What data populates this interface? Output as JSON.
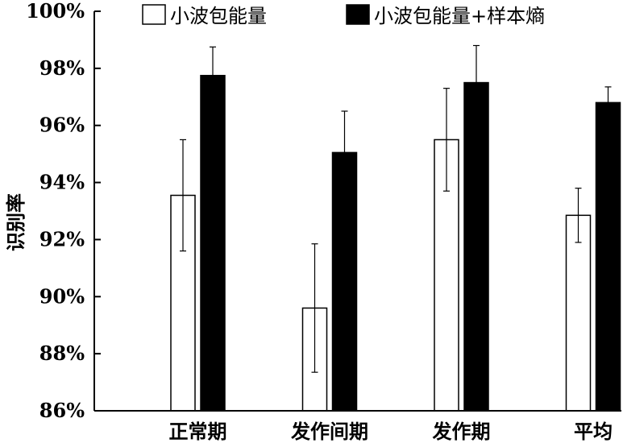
{
  "chart_data": {
    "type": "bar",
    "title": "",
    "xlabel": "",
    "ylabel": "识别率",
    "ylim": [
      86,
      100
    ],
    "yticks": [
      "86%",
      "88%",
      "90%",
      "92%",
      "94%",
      "96%",
      "98%",
      "100%"
    ],
    "categories": [
      "正常期",
      "发作间期",
      "发作期",
      "平均"
    ],
    "legend_position": "top",
    "series": [
      {
        "name": "小波包能量",
        "color": "#ffffff",
        "values": [
          93.55,
          89.6,
          95.5,
          92.85
        ],
        "error": [
          1.95,
          2.25,
          1.8,
          0.95
        ]
      },
      {
        "name": "小波包能量+样本熵",
        "color": "#000000",
        "values": [
          97.75,
          95.05,
          97.5,
          96.8
        ],
        "error": [
          1.0,
          1.45,
          1.3,
          0.55
        ]
      }
    ]
  }
}
